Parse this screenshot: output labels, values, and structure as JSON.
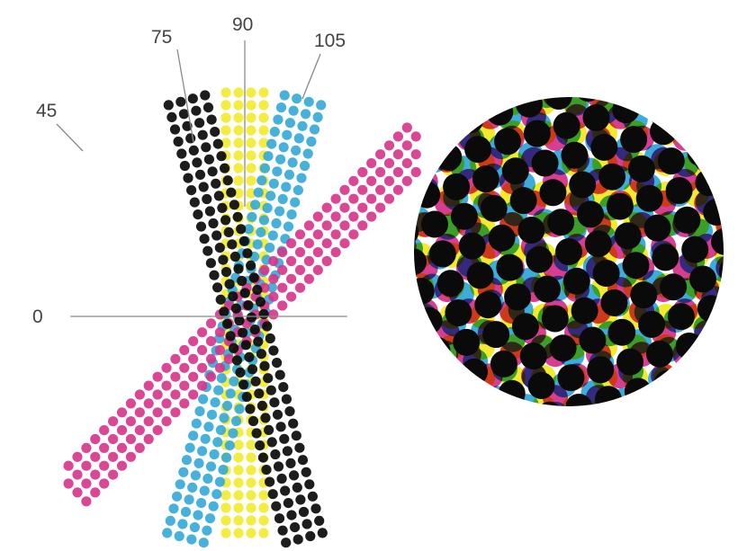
{
  "angle_labels": {
    "a0": "0",
    "a45": "45",
    "a75": "75",
    "a90": "90",
    "a105": "105"
  },
  "inks": {
    "magenta": "#d6348a",
    "cyan": "#33a8d8",
    "yellow": "#f2ea2e",
    "black": "#0a0a0a",
    "rosette_red": "#e02a3a",
    "rosette_green": "#1ea64c",
    "rosette_blue": "#2b3fb0"
  },
  "screens": [
    {
      "name": "magenta",
      "angle_deg": 45,
      "color": "#d6348a"
    },
    {
      "name": "cyan",
      "angle_deg": 75,
      "color": "#33a8d8"
    },
    {
      "name": "yellow",
      "angle_deg": 90,
      "color": "#f2ea2e"
    },
    {
      "name": "black",
      "angle_deg": 105,
      "color": "#0a0a0a"
    }
  ]
}
